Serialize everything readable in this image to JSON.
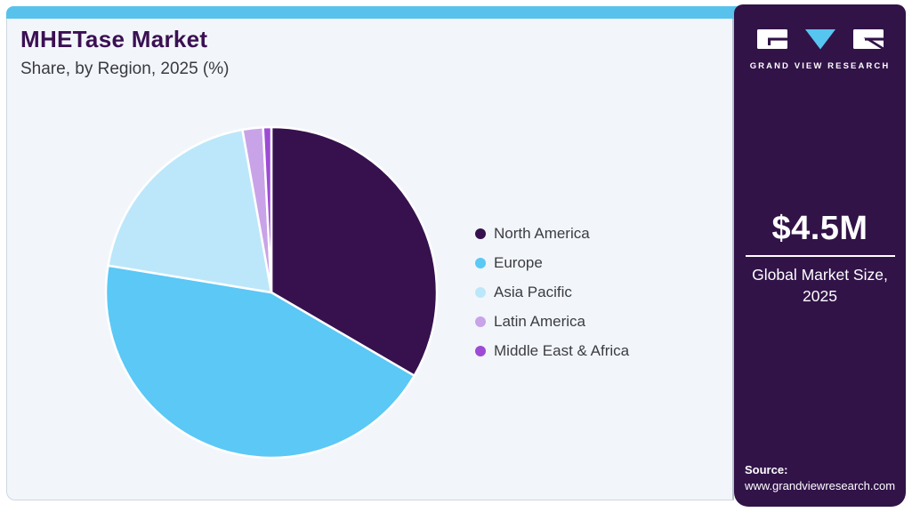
{
  "header": {
    "title": "MHETase Market",
    "subtitle": "Share, by Region, 2025 (%)"
  },
  "chart_data": {
    "type": "pie",
    "title": "MHETase Market Share, by Region, 2025 (%)",
    "unit": "%",
    "labels": [
      "North America",
      "Europe",
      "Asia Pacific",
      "Latin America",
      "Middle East & Africa"
    ],
    "values": [
      33.4,
      44.2,
      19.6,
      2.0,
      0.8
    ],
    "colors": [
      "#36114e",
      "#5bc8f5",
      "#bce7fa",
      "#c9a3e8",
      "#9d4bd5"
    ],
    "start_angle_deg": 0,
    "direction": "clockwise",
    "legend_position": "right",
    "slice_border_color": "#ffffff"
  },
  "sidebar": {
    "logo_text": "GRAND VIEW RESEARCH",
    "market_size_value": "$4.5M",
    "market_size_label": "Global Market Size, 2025",
    "source_label": "Source:",
    "source_url": "www.grandviewresearch.com"
  },
  "theme": {
    "top_bar_color": "#58c2ec",
    "card_bg": "#f2f6fa",
    "sidebar_bg": "#311348",
    "title_color": "#3b1053",
    "text_color": "#3a3a42",
    "legend_text_color": "#3c3c44",
    "logo_accent": "#56c5f0"
  }
}
